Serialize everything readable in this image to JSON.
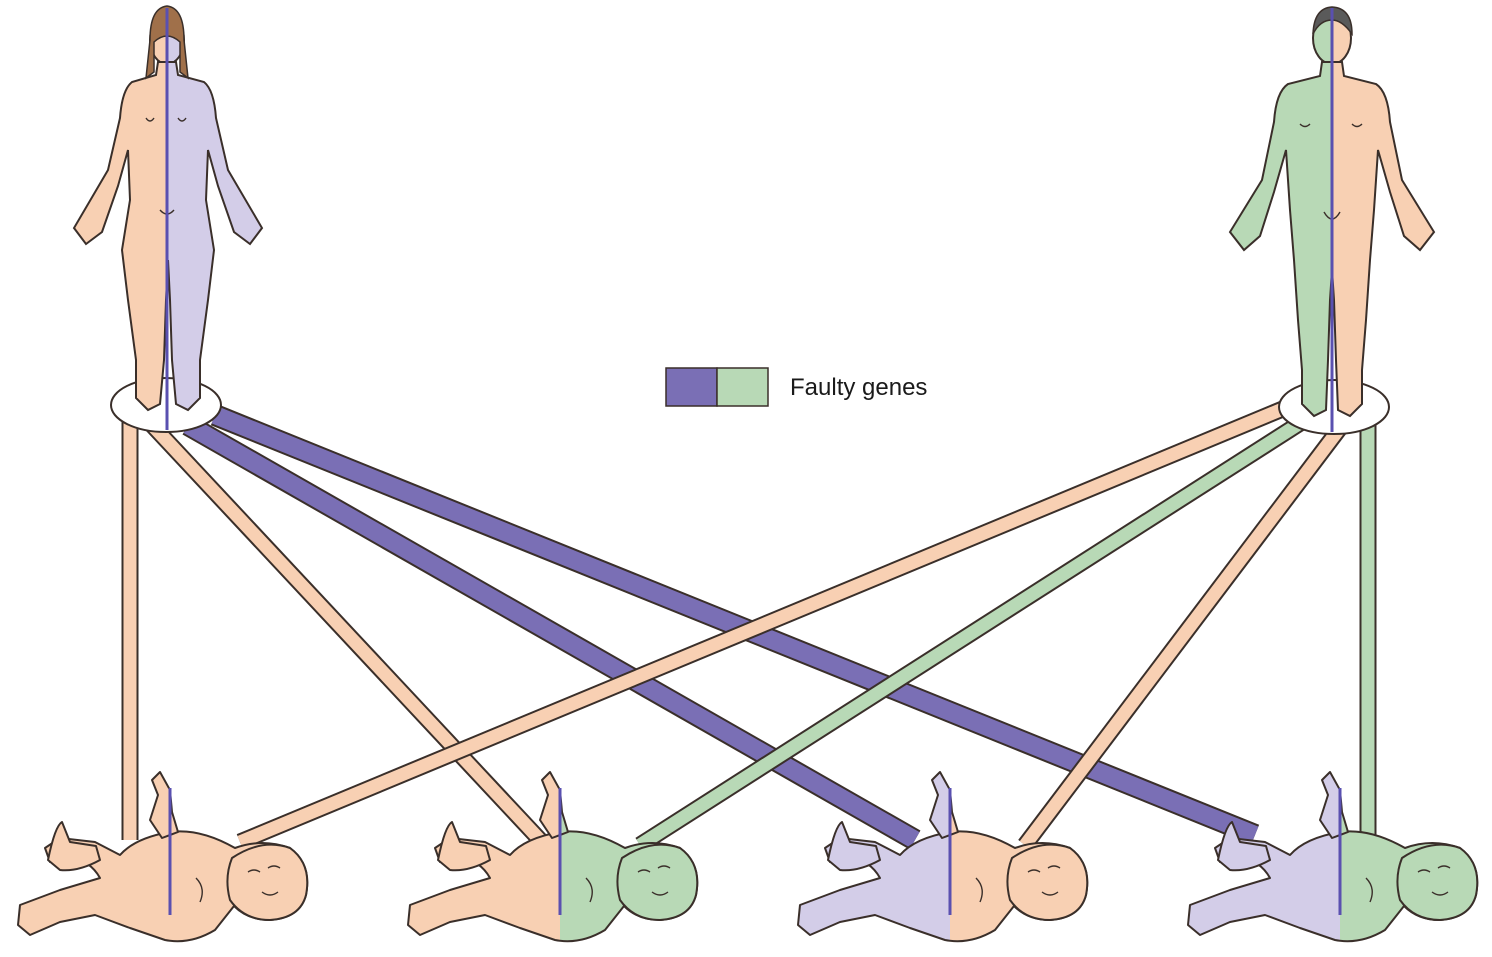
{
  "legend": {
    "label": "Faulty genes",
    "colors": [
      "#7a6fb5",
      "#b8d9b6"
    ]
  },
  "colors": {
    "unaffected": "#f8d0b3",
    "mother_faulty": "#7a6fb5",
    "father_faulty": "#b8d9b6",
    "mother_body_faulty": "#d3cde8",
    "marker_line": "#5a50b0",
    "outline": "#3a2f2a"
  },
  "parents": [
    {
      "id": "mother",
      "left_half": "unaffected",
      "right_half": "mother_faulty"
    },
    {
      "id": "father",
      "left_half": "father_faulty",
      "right_half": "unaffected"
    }
  ],
  "children": [
    {
      "id": "child-1",
      "from_mother": "unaffected",
      "from_father": "unaffected"
    },
    {
      "id": "child-2",
      "from_mother": "unaffected",
      "from_father": "father_faulty"
    },
    {
      "id": "child-3",
      "from_mother": "mother_faulty",
      "from_father": "unaffected"
    },
    {
      "id": "child-4",
      "from_mother": "mother_faulty",
      "from_father": "father_faulty"
    }
  ]
}
